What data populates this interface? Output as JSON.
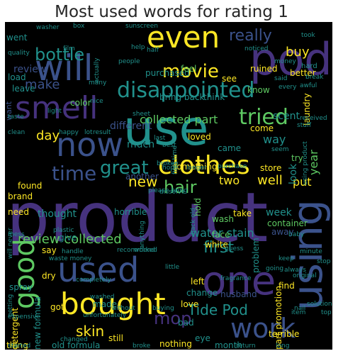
{
  "title": "Most used words for rating 1",
  "colors": {
    "background": "#000000",
    "palette": [
      "#440154",
      "#3b528b",
      "#21918c",
      "#5ec962",
      "#fde725",
      "#2a788e",
      "#46327e",
      "#7ad151"
    ]
  },
  "words": [
    {
      "text": "product"
    },
    {
      "text": "use"
    },
    {
      "text": "pod"
    },
    {
      "text": "even"
    },
    {
      "text": "will"
    },
    {
      "text": "one"
    },
    {
      "text": "bought"
    },
    {
      "text": "clothes"
    },
    {
      "text": "now"
    },
    {
      "text": "smell"
    },
    {
      "text": "used"
    },
    {
      "text": "work"
    },
    {
      "text": "using"
    },
    {
      "text": "disappointed"
    },
    {
      "text": "good"
    },
    {
      "text": "time"
    },
    {
      "text": "tried"
    },
    {
      "text": "movie"
    },
    {
      "text": "great"
    },
    {
      "text": "bottle"
    },
    {
      "text": "hair"
    },
    {
      "text": "really"
    },
    {
      "text": "new"
    },
    {
      "text": "Tide Pod"
    },
    {
      "text": "mop"
    },
    {
      "text": "first"
    },
    {
      "text": "review collected"
    },
    {
      "text": "skin"
    },
    {
      "text": "day"
    },
    {
      "text": "make"
    },
    {
      "text": "collected part"
    },
    {
      "text": "year"
    },
    {
      "text": "well"
    },
    {
      "text": "put"
    },
    {
      "text": "two"
    },
    {
      "text": "water stain"
    },
    {
      "text": "different"
    },
    {
      "text": "much"
    },
    {
      "text": "way"
    },
    {
      "text": "buy"
    },
    {
      "text": "review"
    },
    {
      "text": "went"
    },
    {
      "text": "load"
    },
    {
      "text": "leave"
    },
    {
      "text": "want"
    },
    {
      "text": "color"
    },
    {
      "text": "purchased"
    },
    {
      "text": "feel"
    },
    {
      "text": "ruined"
    },
    {
      "text": "see"
    },
    {
      "text": "know"
    },
    {
      "text": "bring back"
    },
    {
      "text": "think"
    },
    {
      "text": "scent"
    },
    {
      "text": "come"
    },
    {
      "text": "laundry"
    },
    {
      "text": "loved"
    },
    {
      "text": "came"
    },
    {
      "text": "try"
    },
    {
      "text": "store"
    },
    {
      "text": "something"
    },
    {
      "text": "another"
    },
    {
      "text": "found"
    },
    {
      "text": "brand"
    },
    {
      "text": "need"
    },
    {
      "text": "thought"
    },
    {
      "text": "look"
    },
    {
      "text": "week"
    },
    {
      "text": "take"
    },
    {
      "text": "container"
    },
    {
      "text": "wash"
    },
    {
      "text": "away"
    },
    {
      "text": "hold"
    },
    {
      "text": "face"
    },
    {
      "text": "white"
    },
    {
      "text": "give"
    },
    {
      "text": "say"
    },
    {
      "text": "horrible"
    },
    {
      "text": "problem"
    },
    {
      "text": "dry"
    },
    {
      "text": "left"
    },
    {
      "text": "change"
    },
    {
      "text": "husband"
    },
    {
      "text": "find"
    },
    {
      "text": "got"
    },
    {
      "text": "made"
    },
    {
      "text": "love"
    },
    {
      "text": "part promotion"
    },
    {
      "text": "spray"
    },
    {
      "text": "new formula"
    },
    {
      "text": "detergent"
    },
    {
      "text": "thing"
    },
    {
      "text": "old formula"
    },
    {
      "text": "still"
    },
    {
      "text": "bad"
    },
    {
      "text": "eye"
    },
    {
      "text": "terrible"
    },
    {
      "text": "month"
    },
    {
      "text": "nothing"
    },
    {
      "text": "better"
    },
    {
      "text": "hard"
    },
    {
      "text": "box"
    },
    {
      "text": "sunscreen"
    },
    {
      "text": "film"
    },
    {
      "text": "quality"
    },
    {
      "text": "help"
    },
    {
      "text": "people"
    },
    {
      "text": "many"
    },
    {
      "text": "nice"
    },
    {
      "text": "light"
    },
    {
      "text": "lot"
    },
    {
      "text": "result"
    },
    {
      "text": "happy"
    },
    {
      "text": "clean"
    },
    {
      "text": "last"
    },
    {
      "text": "best"
    },
    {
      "text": "broken"
    },
    {
      "text": "purchase"
    },
    {
      "text": "longer"
    },
    {
      "text": "hope"
    },
    {
      "text": "dissolve"
    },
    {
      "text": "plastic"
    },
    {
      "text": "mess"
    },
    {
      "text": "waste money"
    },
    {
      "text": "please bring"
    },
    {
      "text": "back old"
    },
    {
      "text": "recommend"
    },
    {
      "text": "worked"
    },
    {
      "text": "handle"
    },
    {
      "text": "minute"
    },
    {
      "text": "going"
    },
    {
      "text": "fragrance"
    },
    {
      "text": "nail"
    },
    {
      "text": "solution"
    },
    {
      "text": "item"
    },
    {
      "text": "top"
    },
    {
      "text": "started"
    },
    {
      "text": "broke"
    },
    {
      "text": "return"
    },
    {
      "text": "long"
    },
    {
      "text": "took"
    },
    {
      "text": "every"
    },
    {
      "text": "said"
    },
    {
      "text": "awful"
    },
    {
      "text": "break"
    },
    {
      "text": "received"
    },
    {
      "text": "stuff"
    },
    {
      "text": "seem"
    },
    {
      "text": "noticed"
    },
    {
      "text": "little"
    },
    {
      "text": "always"
    },
    {
      "text": "expensive"
    },
    {
      "text": "without"
    },
    {
      "text": "buying"
    },
    {
      "text": "guess"
    },
    {
      "text": "baby"
    },
    {
      "text": "original"
    },
    {
      "text": "keep"
    },
    {
      "text": "washed"
    },
    {
      "text": "changed"
    },
    {
      "text": "taste"
    },
    {
      "text": "actually"
    },
    {
      "text": "anything"
    },
    {
      "text": "will never"
    },
    {
      "text": "getting"
    },
    {
      "text": "stop"
    },
    {
      "text": "sheet"
    },
    {
      "text": "using product"
    },
    {
      "text": "first time"
    },
    {
      "text": "completely"
    },
    {
      "text": "unfortunately"
    },
    {
      "text": "half"
    },
    {
      "text": "washer"
    },
    {
      "text": "money"
    }
  ]
}
